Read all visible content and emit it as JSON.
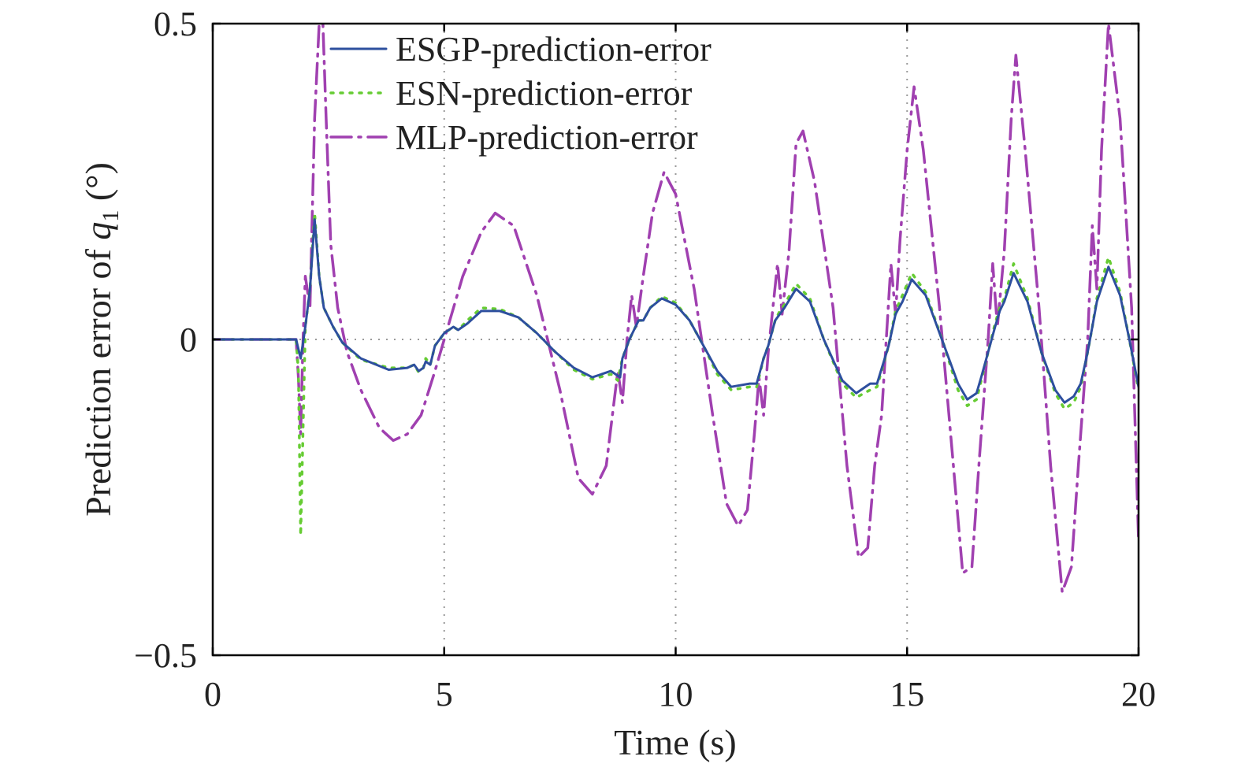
{
  "chart_data": {
    "type": "line",
    "xlabel": "Time (s)",
    "ylabel_prefix": "Prediction error of ",
    "ylabel_var": "q",
    "ylabel_sub": "1",
    "ylabel_suffix": " (°)",
    "xlim": [
      0,
      20
    ],
    "ylim": [
      -0.5,
      0.5
    ],
    "xticks": [
      0,
      5,
      10,
      15,
      20
    ],
    "xtick_labels": [
      "0",
      "5",
      "10",
      "15",
      "20"
    ],
    "yticks": [
      -0.5,
      0,
      0.5
    ],
    "ytick_labels": [
      "−0.5",
      "0",
      "0.5"
    ],
    "grid": true,
    "legend_position": "top-left",
    "series": [
      {
        "name": "ESGP-prediction-error",
        "color": "#2d4f9e",
        "style": "solid",
        "points": [
          [
            0,
            0
          ],
          [
            1.8,
            0
          ],
          [
            1.9,
            -0.03
          ],
          [
            2.0,
            0.02
          ],
          [
            2.1,
            0.08
          ],
          [
            2.2,
            0.19
          ],
          [
            2.3,
            0.1
          ],
          [
            2.4,
            0.05
          ],
          [
            2.6,
            0.02
          ],
          [
            2.8,
            -0.005
          ],
          [
            3.2,
            -0.03
          ],
          [
            3.8,
            -0.048
          ],
          [
            4.2,
            -0.045
          ],
          [
            4.35,
            -0.04
          ],
          [
            4.45,
            -0.05
          ],
          [
            4.55,
            -0.045
          ],
          [
            4.6,
            -0.035
          ],
          [
            4.7,
            -0.04
          ],
          [
            4.8,
            -0.01
          ],
          [
            5.0,
            0.01
          ],
          [
            5.2,
            0.02
          ],
          [
            5.3,
            0.015
          ],
          [
            5.5,
            0.025
          ],
          [
            5.8,
            0.045
          ],
          [
            6.2,
            0.045
          ],
          [
            6.6,
            0.035
          ],
          [
            7.0,
            0.01
          ],
          [
            7.4,
            -0.02
          ],
          [
            7.8,
            -0.045
          ],
          [
            8.2,
            -0.06
          ],
          [
            8.6,
            -0.05
          ],
          [
            8.8,
            -0.06
          ],
          [
            8.85,
            -0.03
          ],
          [
            9.0,
            0.0
          ],
          [
            9.2,
            0.03
          ],
          [
            9.3,
            0.03
          ],
          [
            9.45,
            0.05
          ],
          [
            9.7,
            0.065
          ],
          [
            10.0,
            0.055
          ],
          [
            10.3,
            0.03
          ],
          [
            10.6,
            -0.01
          ],
          [
            10.9,
            -0.05
          ],
          [
            11.2,
            -0.075
          ],
          [
            11.6,
            -0.07
          ],
          [
            11.75,
            -0.07
          ],
          [
            11.9,
            -0.03
          ],
          [
            12.0,
            -0.01
          ],
          [
            12.15,
            0.03
          ],
          [
            12.25,
            0.04
          ],
          [
            12.35,
            0.05
          ],
          [
            12.6,
            0.08
          ],
          [
            12.9,
            0.06
          ],
          [
            13.2,
            0.0
          ],
          [
            13.6,
            -0.065
          ],
          [
            13.9,
            -0.085
          ],
          [
            14.2,
            -0.07
          ],
          [
            14.35,
            -0.07
          ],
          [
            14.6,
            -0.01
          ],
          [
            14.75,
            0.04
          ],
          [
            14.9,
            0.06
          ],
          [
            15.1,
            0.095
          ],
          [
            15.4,
            0.07
          ],
          [
            15.8,
            -0.01
          ],
          [
            16.1,
            -0.07
          ],
          [
            16.3,
            -0.095
          ],
          [
            16.5,
            -0.085
          ],
          [
            16.6,
            -0.06
          ],
          [
            16.75,
            -0.02
          ],
          [
            16.9,
            0.02
          ],
          [
            17.0,
            0.045
          ],
          [
            17.1,
            0.06
          ],
          [
            17.3,
            0.105
          ],
          [
            17.6,
            0.06
          ],
          [
            17.9,
            -0.02
          ],
          [
            18.2,
            -0.08
          ],
          [
            18.4,
            -0.1
          ],
          [
            18.6,
            -0.09
          ],
          [
            18.75,
            -0.07
          ],
          [
            18.9,
            -0.02
          ],
          [
            19.0,
            0.02
          ],
          [
            19.1,
            0.06
          ],
          [
            19.35,
            0.115
          ],
          [
            19.6,
            0.07
          ],
          [
            19.8,
            0.0
          ],
          [
            20.0,
            -0.075
          ]
        ]
      },
      {
        "name": "ESN-prediction-error",
        "color": "#66cc33",
        "style": "dotted",
        "points": [
          [
            0,
            0
          ],
          [
            1.8,
            0
          ],
          [
            1.85,
            -0.05
          ],
          [
            1.9,
            -0.31
          ],
          [
            2.0,
            0.02
          ],
          [
            2.1,
            0.08
          ],
          [
            2.2,
            0.2
          ],
          [
            2.3,
            0.1
          ],
          [
            2.4,
            0.05
          ],
          [
            2.6,
            0.02
          ],
          [
            2.8,
            -0.005
          ],
          [
            3.2,
            -0.032
          ],
          [
            3.8,
            -0.045
          ],
          [
            4.2,
            -0.045
          ],
          [
            4.35,
            -0.04
          ],
          [
            4.45,
            -0.052
          ],
          [
            4.55,
            -0.045
          ],
          [
            4.6,
            -0.03
          ],
          [
            4.7,
            -0.04
          ],
          [
            4.8,
            -0.01
          ],
          [
            5.0,
            0.01
          ],
          [
            5.2,
            0.02
          ],
          [
            5.3,
            0.015
          ],
          [
            5.5,
            0.03
          ],
          [
            5.8,
            0.05
          ],
          [
            6.2,
            0.048
          ],
          [
            6.6,
            0.035
          ],
          [
            7.0,
            0.01
          ],
          [
            7.4,
            -0.02
          ],
          [
            7.8,
            -0.048
          ],
          [
            8.2,
            -0.063
          ],
          [
            8.6,
            -0.055
          ],
          [
            8.75,
            -0.065
          ],
          [
            8.85,
            -0.03
          ],
          [
            9.0,
            0.0
          ],
          [
            9.2,
            0.03
          ],
          [
            9.3,
            0.03
          ],
          [
            9.45,
            0.05
          ],
          [
            9.7,
            0.068
          ],
          [
            10.0,
            0.058
          ],
          [
            10.3,
            0.03
          ],
          [
            10.6,
            -0.01
          ],
          [
            10.9,
            -0.055
          ],
          [
            11.2,
            -0.08
          ],
          [
            11.6,
            -0.075
          ],
          [
            11.75,
            -0.075
          ],
          [
            11.9,
            -0.03
          ],
          [
            12.0,
            -0.01
          ],
          [
            12.15,
            0.03
          ],
          [
            12.25,
            0.045
          ],
          [
            12.35,
            0.055
          ],
          [
            12.6,
            0.088
          ],
          [
            12.9,
            0.065
          ],
          [
            13.2,
            0.0
          ],
          [
            13.6,
            -0.07
          ],
          [
            13.9,
            -0.092
          ],
          [
            14.2,
            -0.08
          ],
          [
            14.35,
            -0.075
          ],
          [
            14.6,
            -0.01
          ],
          [
            14.75,
            0.045
          ],
          [
            14.9,
            0.07
          ],
          [
            15.1,
            0.105
          ],
          [
            15.4,
            0.075
          ],
          [
            15.8,
            -0.01
          ],
          [
            16.1,
            -0.08
          ],
          [
            16.3,
            -0.105
          ],
          [
            16.5,
            -0.095
          ],
          [
            16.6,
            -0.065
          ],
          [
            16.75,
            -0.02
          ],
          [
            16.9,
            0.025
          ],
          [
            17.0,
            0.05
          ],
          [
            17.1,
            0.065
          ],
          [
            17.3,
            0.12
          ],
          [
            17.6,
            0.065
          ],
          [
            17.9,
            -0.02
          ],
          [
            18.2,
            -0.085
          ],
          [
            18.4,
            -0.11
          ],
          [
            18.6,
            -0.1
          ],
          [
            18.75,
            -0.075
          ],
          [
            18.9,
            -0.02
          ],
          [
            19.0,
            0.02
          ],
          [
            19.1,
            0.065
          ],
          [
            19.35,
            0.13
          ],
          [
            19.6,
            0.075
          ],
          [
            19.8,
            0.0
          ],
          [
            20.0,
            -0.08
          ]
        ]
      },
      {
        "name": "MLP-prediction-error",
        "color": "#a040b0",
        "style": "dashdot",
        "points": [
          [
            0,
            0
          ],
          [
            1.8,
            0
          ],
          [
            1.85,
            -0.06
          ],
          [
            1.9,
            -0.15
          ],
          [
            1.95,
            0.0
          ],
          [
            2.0,
            0.1
          ],
          [
            2.1,
            0.05
          ],
          [
            2.2,
            0.35
          ],
          [
            2.3,
            0.5
          ],
          [
            2.38,
            0.5
          ],
          [
            2.45,
            0.35
          ],
          [
            2.55,
            0.15
          ],
          [
            2.7,
            0.05
          ],
          [
            2.9,
            -0.02
          ],
          [
            3.2,
            -0.08
          ],
          [
            3.6,
            -0.14
          ],
          [
            3.9,
            -0.16
          ],
          [
            4.2,
            -0.15
          ],
          [
            4.5,
            -0.12
          ],
          [
            4.8,
            -0.05
          ],
          [
            5.0,
            0.0
          ],
          [
            5.4,
            0.1
          ],
          [
            5.8,
            0.17
          ],
          [
            6.1,
            0.2
          ],
          [
            6.5,
            0.18
          ],
          [
            7.0,
            0.07
          ],
          [
            7.5,
            -0.08
          ],
          [
            7.9,
            -0.22
          ],
          [
            8.2,
            -0.245
          ],
          [
            8.5,
            -0.2
          ],
          [
            8.65,
            -0.11
          ],
          [
            8.75,
            -0.05
          ],
          [
            8.85,
            -0.1
          ],
          [
            8.95,
            0.0
          ],
          [
            9.05,
            0.07
          ],
          [
            9.15,
            0.02
          ],
          [
            9.3,
            0.1
          ],
          [
            9.5,
            0.2
          ],
          [
            9.75,
            0.265
          ],
          [
            10.0,
            0.23
          ],
          [
            10.4,
            0.08
          ],
          [
            10.8,
            -0.12
          ],
          [
            11.1,
            -0.26
          ],
          [
            11.35,
            -0.295
          ],
          [
            11.55,
            -0.27
          ],
          [
            11.7,
            -0.15
          ],
          [
            11.8,
            -0.06
          ],
          [
            11.9,
            -0.12
          ],
          [
            12.0,
            -0.02
          ],
          [
            12.1,
            0.05
          ],
          [
            12.2,
            0.12
          ],
          [
            12.3,
            0.04
          ],
          [
            12.45,
            0.14
          ],
          [
            12.6,
            0.31
          ],
          [
            12.75,
            0.33
          ],
          [
            13.0,
            0.25
          ],
          [
            13.4,
            0.05
          ],
          [
            13.7,
            -0.2
          ],
          [
            13.95,
            -0.345
          ],
          [
            14.15,
            -0.33
          ],
          [
            14.3,
            -0.2
          ],
          [
            14.45,
            -0.12
          ],
          [
            14.55,
            0.0
          ],
          [
            14.65,
            0.12
          ],
          [
            14.75,
            0.04
          ],
          [
            14.85,
            0.16
          ],
          [
            15.0,
            0.3
          ],
          [
            15.15,
            0.4
          ],
          [
            15.35,
            0.3
          ],
          [
            15.7,
            0.05
          ],
          [
            16.0,
            -0.2
          ],
          [
            16.2,
            -0.37
          ],
          [
            16.4,
            -0.36
          ],
          [
            16.55,
            -0.2
          ],
          [
            16.65,
            -0.1
          ],
          [
            16.75,
            0.0
          ],
          [
            16.85,
            0.12
          ],
          [
            16.95,
            0.02
          ],
          [
            17.1,
            0.14
          ],
          [
            17.25,
            0.35
          ],
          [
            17.35,
            0.45
          ],
          [
            17.55,
            0.3
          ],
          [
            17.85,
            0.05
          ],
          [
            18.1,
            -0.2
          ],
          [
            18.35,
            -0.4
          ],
          [
            18.55,
            -0.36
          ],
          [
            18.7,
            -0.2
          ],
          [
            18.8,
            -0.1
          ],
          [
            18.9,
            0.0
          ],
          [
            19.0,
            0.18
          ],
          [
            19.1,
            0.08
          ],
          [
            19.2,
            0.3
          ],
          [
            19.35,
            0.5
          ],
          [
            19.6,
            0.35
          ],
          [
            19.85,
            0.05
          ],
          [
            20.0,
            -0.32
          ]
        ]
      }
    ]
  }
}
